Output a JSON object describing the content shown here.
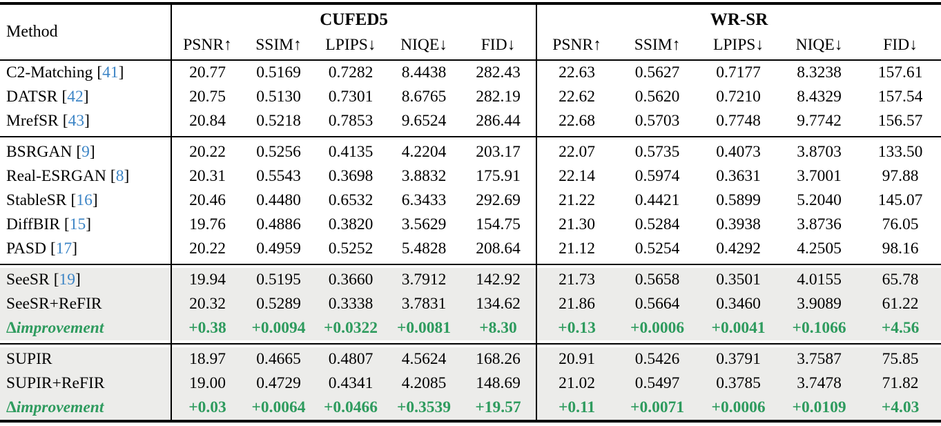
{
  "table": {
    "method_header": "Method",
    "dataset_headers": [
      "CUFED5",
      "WR-SR"
    ],
    "metric_headers": [
      "PSNR↑",
      "SSIM↑",
      "LPIPS↓",
      "NIQE↓",
      "FID↓",
      "PSNR↑",
      "SSIM↑",
      "LPIPS↓",
      "NIQE↓",
      "FID↓"
    ],
    "cite_bracket_open": "[",
    "cite_bracket_close": "]",
    "colors": {
      "citation_blue": "#3d85c6",
      "improvement_green": "#2e9b5e",
      "highlight_gray": "#ececea",
      "rule_black": "#000000"
    },
    "row_groups": [
      {
        "highlight": false,
        "rows": [
          {
            "method": "C2-Matching",
            "cite": "41",
            "values": [
              "20.77",
              "0.5169",
              "0.7282",
              "8.4438",
              "282.43",
              "22.63",
              "0.5627",
              "0.7177",
              "8.3238",
              "157.61"
            ]
          },
          {
            "method": "DATSR",
            "cite": "42",
            "values": [
              "20.75",
              "0.5130",
              "0.7301",
              "8.6765",
              "282.19",
              "22.62",
              "0.5620",
              "0.7210",
              "8.4329",
              "157.54"
            ]
          },
          {
            "method": "MrefSR",
            "cite": "43",
            "values": [
              "20.84",
              "0.5218",
              "0.7853",
              "9.6524",
              "286.44",
              "22.68",
              "0.5703",
              "0.7748",
              "9.7742",
              "156.57"
            ]
          }
        ]
      },
      {
        "highlight": false,
        "rows": [
          {
            "method": "BSRGAN",
            "cite": "9",
            "values": [
              "20.22",
              "0.5256",
              "0.4135",
              "4.2204",
              "203.17",
              "22.07",
              "0.5735",
              "0.4073",
              "3.8703",
              "133.50"
            ]
          },
          {
            "method": "Real-ESRGAN",
            "cite": "8",
            "values": [
              "20.31",
              "0.5543",
              "0.3698",
              "3.8832",
              "175.91",
              "22.14",
              "0.5974",
              "0.3631",
              "3.7001",
              "97.88"
            ]
          },
          {
            "method": "StableSR",
            "cite": "16",
            "values": [
              "20.46",
              "0.4480",
              "0.6532",
              "6.3433",
              "292.69",
              "21.22",
              "0.4421",
              "0.5899",
              "5.2040",
              "145.07"
            ]
          },
          {
            "method": "DiffBIR",
            "cite": "15",
            "values": [
              "19.76",
              "0.4886",
              "0.3820",
              "3.5629",
              "154.75",
              "21.30",
              "0.5284",
              "0.3938",
              "3.8736",
              "76.05"
            ]
          },
          {
            "method": "PASD",
            "cite": "17",
            "values": [
              "20.22",
              "0.4959",
              "0.5252",
              "5.4828",
              "208.64",
              "21.12",
              "0.5254",
              "0.4292",
              "4.2505",
              "98.16"
            ]
          }
        ]
      },
      {
        "highlight": true,
        "rows": [
          {
            "method": "SeeSR",
            "cite": "19",
            "values": [
              "19.94",
              "0.5195",
              "0.3660",
              "3.7912",
              "142.92",
              "21.73",
              "0.5658",
              "0.3501",
              "4.0155",
              "65.78"
            ]
          },
          {
            "method": "SeeSR+ReFIR",
            "values": [
              "20.32",
              "0.5289",
              "0.3338",
              "3.7831",
              "134.62",
              "21.86",
              "0.5664",
              "0.3460",
              "3.9089",
              "61.22"
            ]
          },
          {
            "delta": "Δ",
            "method": "improvement",
            "values": [
              "+0.38",
              "+0.0094",
              "+0.0322",
              "+0.0081",
              "+8.30",
              "+0.13",
              "+0.0006",
              "+0.0041",
              "+0.1066",
              "+4.56"
            ]
          }
        ]
      },
      {
        "highlight": true,
        "rows": [
          {
            "method": "SUPIR",
            "values": [
              "18.97",
              "0.4665",
              "0.4807",
              "4.5624",
              "168.26",
              "20.91",
              "0.5426",
              "0.3791",
              "3.7587",
              "75.85"
            ]
          },
          {
            "method": "SUPIR+ReFIR",
            "values": [
              "19.00",
              "0.4729",
              "0.4341",
              "4.2085",
              "148.69",
              "21.02",
              "0.5497",
              "0.3785",
              "3.7478",
              "71.82"
            ]
          },
          {
            "delta": "Δ",
            "method": "improvement",
            "values": [
              "+0.03",
              "+0.0064",
              "+0.0466",
              "+0.3539",
              "+19.57",
              "+0.11",
              "+0.0071",
              "+0.0006",
              "+0.0109",
              "+4.03"
            ]
          }
        ]
      }
    ]
  }
}
